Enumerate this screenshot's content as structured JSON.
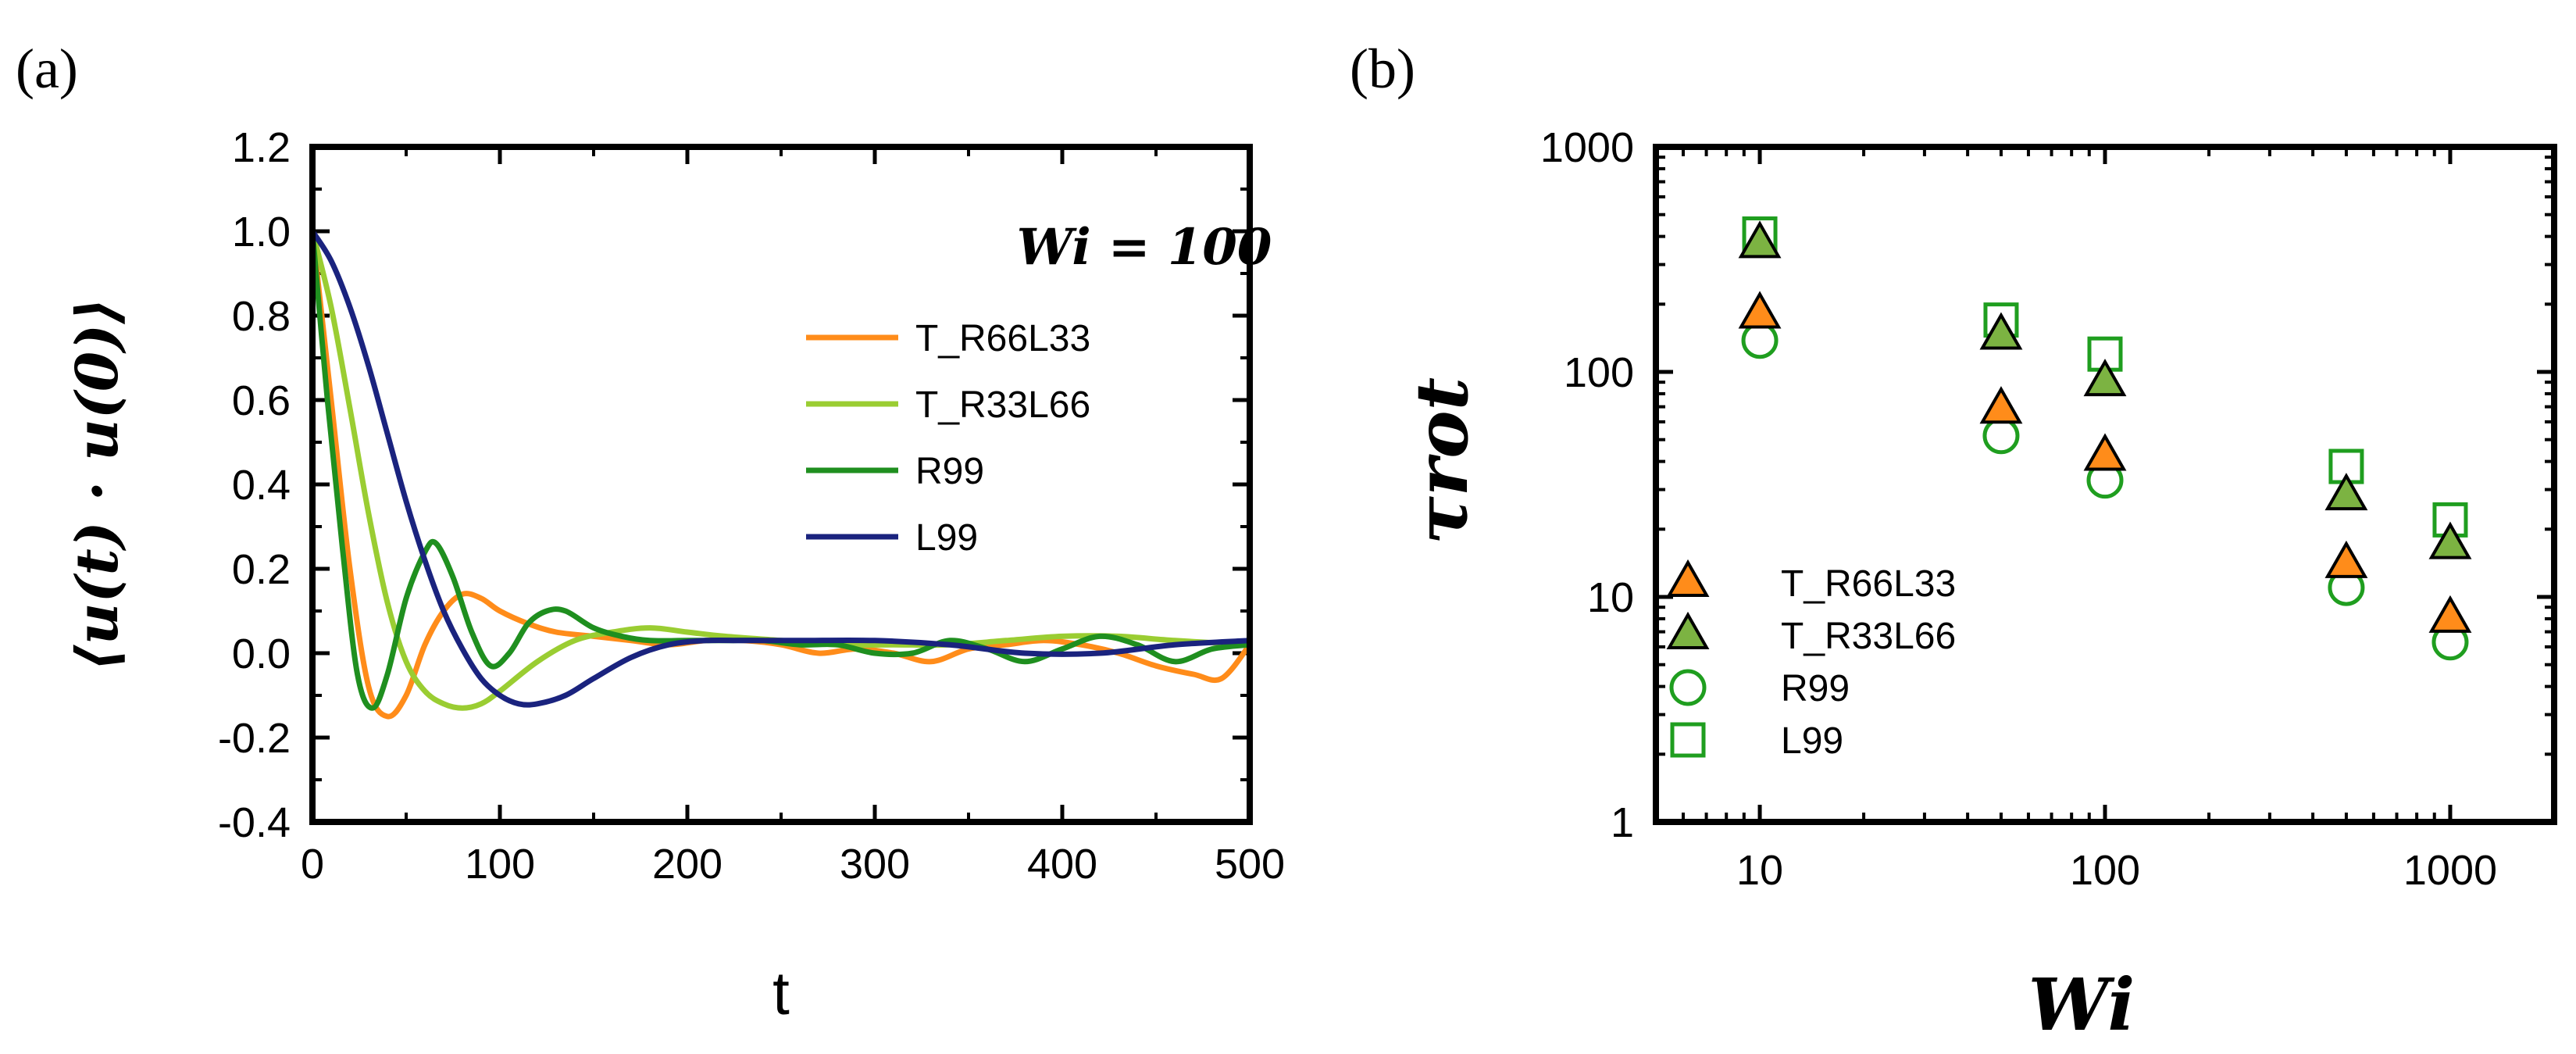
{
  "chart_data": [
    {
      "panel": "(a)",
      "type": "line",
      "xlabel": "t",
      "ylabel": "⟨u(t) · u(0)⟩",
      "annotation": "Wi = 100",
      "xlim": [
        0,
        500
      ],
      "ylim": [
        -0.4,
        1.2
      ],
      "xticks": [
        "0",
        "100",
        "200",
        "300",
        "400",
        "500"
      ],
      "yticks": [
        "-0.4",
        "-0.2",
        "0.0",
        "0.2",
        "0.4",
        "0.6",
        "0.8",
        "1.0",
        "1.2"
      ],
      "xtick_values": [
        0,
        100,
        200,
        300,
        400,
        500
      ],
      "ytick_values": [
        -0.4,
        -0.2,
        0.0,
        0.2,
        0.4,
        0.6,
        0.8,
        1.0,
        1.2
      ],
      "legend_position": "top-right",
      "series": [
        {
          "name": "T_R66L33",
          "color": "#ff8c1a",
          "x": [
            0,
            10,
            20,
            30,
            40,
            50,
            60,
            70,
            80,
            90,
            100,
            115,
            130,
            150,
            170,
            190,
            210,
            230,
            250,
            270,
            290,
            310,
            330,
            350,
            370,
            390,
            410,
            430,
            450,
            470,
            485,
            500
          ],
          "y": [
            1.0,
            0.6,
            0.2,
            -0.08,
            -0.15,
            -0.1,
            0.02,
            0.1,
            0.14,
            0.13,
            0.1,
            0.07,
            0.05,
            0.04,
            0.03,
            0.02,
            0.03,
            0.03,
            0.02,
            0.0,
            0.01,
            0.0,
            -0.02,
            0.01,
            0.02,
            0.03,
            0.02,
            0.0,
            -0.03,
            -0.05,
            -0.06,
            0.02
          ]
        },
        {
          "name": "T_R33L66",
          "color": "#9acd32",
          "x": [
            0,
            10,
            20,
            30,
            40,
            50,
            60,
            70,
            80,
            90,
            100,
            120,
            140,
            160,
            180,
            200,
            220,
            250,
            280,
            310,
            340,
            370,
            400,
            430,
            460,
            500
          ],
          "y": [
            1.0,
            0.82,
            0.58,
            0.33,
            0.12,
            -0.02,
            -0.09,
            -0.12,
            -0.13,
            -0.12,
            -0.09,
            -0.02,
            0.03,
            0.05,
            0.06,
            0.05,
            0.04,
            0.03,
            0.02,
            0.02,
            0.02,
            0.03,
            0.04,
            0.04,
            0.03,
            0.02
          ]
        },
        {
          "name": "R99",
          "color": "#1f8f1f",
          "x": [
            0,
            8,
            16,
            24,
            32,
            40,
            50,
            60,
            66,
            75,
            85,
            95,
            105,
            115,
            125,
            135,
            150,
            165,
            180,
            200,
            220,
            240,
            260,
            280,
            300,
            320,
            340,
            360,
            380,
            400,
            420,
            440,
            460,
            480,
            500
          ],
          "y": [
            1.0,
            0.6,
            0.25,
            -0.05,
            -0.13,
            -0.05,
            0.13,
            0.24,
            0.26,
            0.18,
            0.05,
            -0.03,
            0.0,
            0.07,
            0.1,
            0.1,
            0.06,
            0.04,
            0.03,
            0.03,
            0.03,
            0.03,
            0.02,
            0.02,
            0.0,
            0.0,
            0.03,
            0.01,
            -0.02,
            0.01,
            0.04,
            0.02,
            -0.02,
            0.01,
            0.02
          ]
        },
        {
          "name": "L99",
          "color": "#1a237e",
          "x": [
            0,
            10,
            20,
            30,
            40,
            50,
            60,
            70,
            80,
            90,
            100,
            110,
            120,
            135,
            150,
            170,
            190,
            210,
            230,
            260,
            300,
            340,
            380,
            420,
            460,
            500
          ],
          "y": [
            1.0,
            0.93,
            0.82,
            0.68,
            0.52,
            0.36,
            0.22,
            0.1,
            0.01,
            -0.06,
            -0.1,
            -0.12,
            -0.12,
            -0.1,
            -0.06,
            -0.01,
            0.02,
            0.03,
            0.03,
            0.03,
            0.03,
            0.02,
            0.0,
            0.0,
            0.02,
            0.03
          ]
        }
      ]
    },
    {
      "panel": "(b)",
      "type": "scatter",
      "xscale": "log",
      "yscale": "log",
      "xlabel": "Wi",
      "ylabel": "τrot",
      "xlim": [
        5,
        2000
      ],
      "ylim": [
        1,
        1000
      ],
      "xticks": [
        "10",
        "100",
        "1000"
      ],
      "yticks": [
        "1",
        "10",
        "100",
        "1000"
      ],
      "xtick_values": [
        10,
        100,
        1000
      ],
      "ytick_values": [
        1,
        10,
        100,
        1000
      ],
      "legend_position": "bottom-left",
      "x": [
        10,
        50,
        100,
        500,
        1000
      ],
      "series": [
        {
          "name": "T_R66L33",
          "marker": "triangle",
          "fill": "#ff8c1a",
          "stroke": "#000000",
          "values": [
            180,
            68,
            42,
            14,
            8
          ]
        },
        {
          "name": "T_R33L66",
          "marker": "triangle",
          "fill": "#7cb342",
          "stroke": "#000000",
          "values": [
            370,
            145,
            90,
            28,
            17
          ]
        },
        {
          "name": "R99",
          "marker": "circle",
          "fill": "none",
          "stroke": "#1f9e1f",
          "values": [
            138,
            52,
            33,
            11,
            6.3
          ]
        },
        {
          "name": "L99",
          "marker": "square",
          "fill": "none",
          "stroke": "#1f9e1f",
          "values": [
            410,
            170,
            120,
            38,
            22
          ]
        }
      ]
    }
  ]
}
